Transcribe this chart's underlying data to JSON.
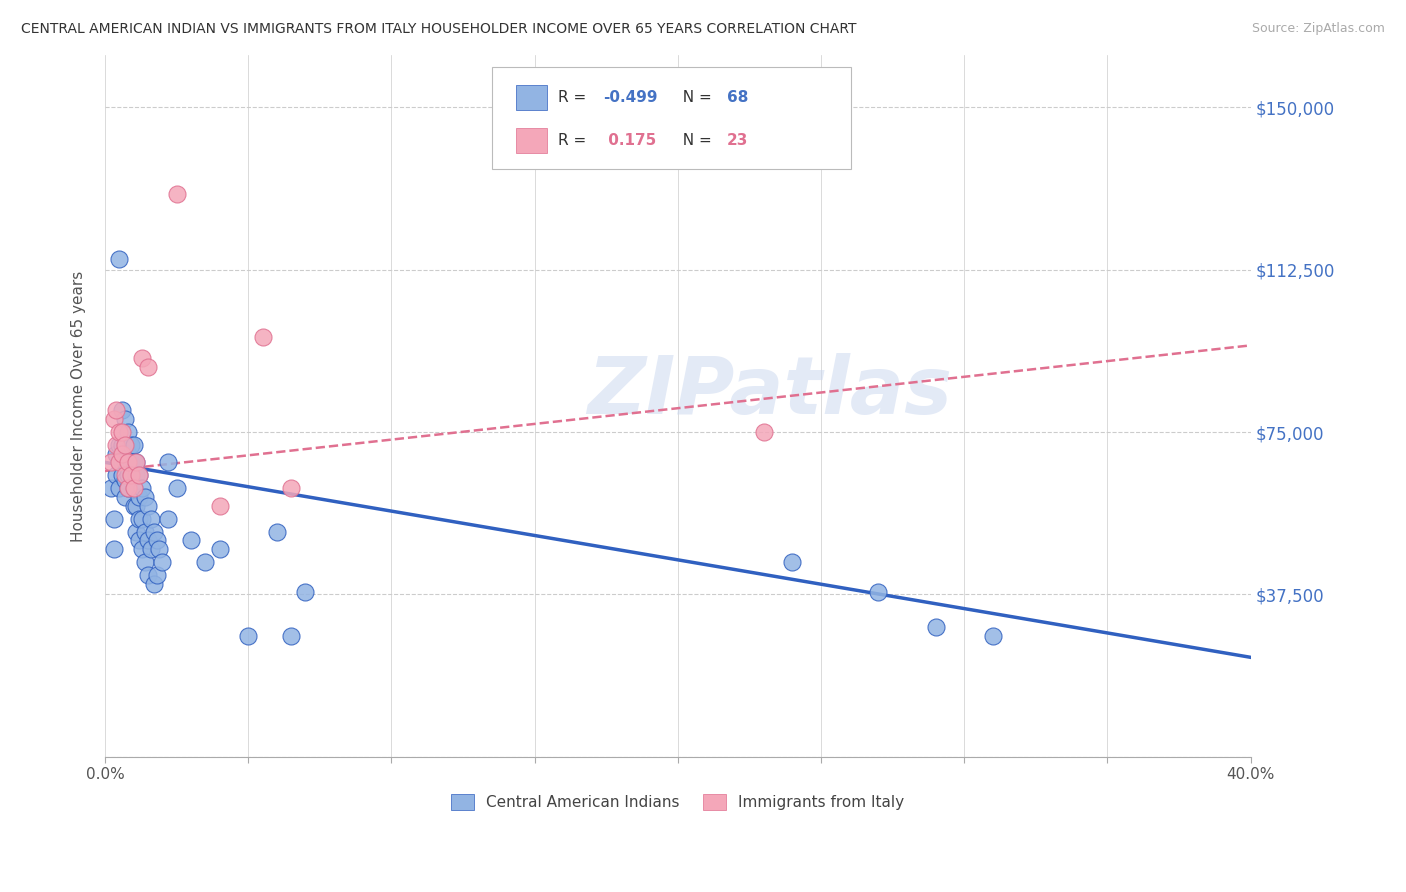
{
  "title": "CENTRAL AMERICAN INDIAN VS IMMIGRANTS FROM ITALY HOUSEHOLDER INCOME OVER 65 YEARS CORRELATION CHART",
  "source": "Source: ZipAtlas.com",
  "ylabel": "Householder Income Over 65 years",
  "legend_label1": "Central American Indians",
  "legend_label2": "Immigrants from Italy",
  "color_blue": "#92b4e3",
  "color_pink": "#f4a7b9",
  "color_blue_line": "#3060c0",
  "color_pink_line": "#e07090",
  "watermark": "ZIPatlas",
  "ytick_labels": [
    "",
    "$37,500",
    "$75,000",
    "$112,500",
    "$150,000"
  ],
  "ytick_color": "#4472c4",
  "xmin": 0.0,
  "xmax": 0.4,
  "ymin": 0,
  "ymax": 162000,
  "blue_points": [
    [
      0.002,
      62000
    ],
    [
      0.003,
      55000
    ],
    [
      0.003,
      48000
    ],
    [
      0.004,
      70000
    ],
    [
      0.004,
      65000
    ],
    [
      0.005,
      115000
    ],
    [
      0.005,
      72000
    ],
    [
      0.005,
      68000
    ],
    [
      0.005,
      62000
    ],
    [
      0.006,
      80000
    ],
    [
      0.006,
      72000
    ],
    [
      0.006,
      68000
    ],
    [
      0.006,
      65000
    ],
    [
      0.007,
      78000
    ],
    [
      0.007,
      72000
    ],
    [
      0.007,
      68000
    ],
    [
      0.007,
      64000
    ],
    [
      0.007,
      60000
    ],
    [
      0.008,
      75000
    ],
    [
      0.008,
      70000
    ],
    [
      0.008,
      65000
    ],
    [
      0.008,
      62000
    ],
    [
      0.009,
      72000
    ],
    [
      0.009,
      68000
    ],
    [
      0.009,
      65000
    ],
    [
      0.01,
      72000
    ],
    [
      0.01,
      68000
    ],
    [
      0.01,
      62000
    ],
    [
      0.01,
      58000
    ],
    [
      0.011,
      68000
    ],
    [
      0.011,
      65000
    ],
    [
      0.011,
      58000
    ],
    [
      0.011,
      52000
    ],
    [
      0.012,
      65000
    ],
    [
      0.012,
      60000
    ],
    [
      0.012,
      55000
    ],
    [
      0.012,
      50000
    ],
    [
      0.013,
      62000
    ],
    [
      0.013,
      55000
    ],
    [
      0.013,
      48000
    ],
    [
      0.014,
      60000
    ],
    [
      0.014,
      52000
    ],
    [
      0.014,
      45000
    ],
    [
      0.015,
      58000
    ],
    [
      0.015,
      50000
    ],
    [
      0.015,
      42000
    ],
    [
      0.016,
      55000
    ],
    [
      0.016,
      48000
    ],
    [
      0.017,
      52000
    ],
    [
      0.017,
      40000
    ],
    [
      0.018,
      50000
    ],
    [
      0.018,
      42000
    ],
    [
      0.019,
      48000
    ],
    [
      0.02,
      45000
    ],
    [
      0.022,
      68000
    ],
    [
      0.022,
      55000
    ],
    [
      0.025,
      62000
    ],
    [
      0.03,
      50000
    ],
    [
      0.035,
      45000
    ],
    [
      0.04,
      48000
    ],
    [
      0.05,
      28000
    ],
    [
      0.06,
      52000
    ],
    [
      0.065,
      28000
    ],
    [
      0.07,
      38000
    ],
    [
      0.24,
      45000
    ],
    [
      0.27,
      38000
    ],
    [
      0.29,
      30000
    ],
    [
      0.31,
      28000
    ]
  ],
  "pink_points": [
    [
      0.002,
      68000
    ],
    [
      0.003,
      78000
    ],
    [
      0.004,
      80000
    ],
    [
      0.004,
      72000
    ],
    [
      0.005,
      75000
    ],
    [
      0.005,
      68000
    ],
    [
      0.006,
      75000
    ],
    [
      0.006,
      70000
    ],
    [
      0.007,
      72000
    ],
    [
      0.007,
      65000
    ],
    [
      0.008,
      68000
    ],
    [
      0.008,
      62000
    ],
    [
      0.009,
      65000
    ],
    [
      0.01,
      62000
    ],
    [
      0.011,
      68000
    ],
    [
      0.012,
      65000
    ],
    [
      0.013,
      92000
    ],
    [
      0.015,
      90000
    ],
    [
      0.025,
      130000
    ],
    [
      0.04,
      58000
    ],
    [
      0.055,
      97000
    ],
    [
      0.065,
      62000
    ],
    [
      0.23,
      75000
    ]
  ],
  "blue_line_x": [
    0.0,
    0.4
  ],
  "blue_line_y": [
    68000,
    23000
  ],
  "pink_line_x": [
    0.0,
    0.4
  ],
  "pink_line_y": [
    66000,
    95000
  ],
  "xtick_positions": [
    0.0,
    0.05,
    0.1,
    0.15,
    0.2,
    0.25,
    0.3,
    0.35,
    0.4
  ],
  "xtick_show_labels": [
    true,
    false,
    false,
    false,
    false,
    false,
    false,
    false,
    true
  ],
  "ytick_positions": [
    0,
    37500,
    75000,
    112500,
    150000
  ]
}
